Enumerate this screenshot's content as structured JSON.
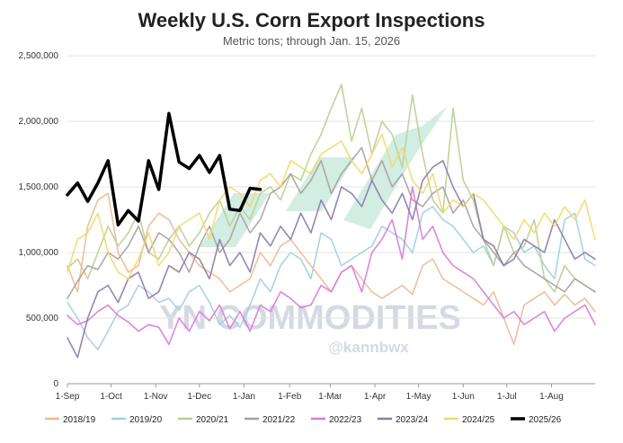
{
  "chart_data": {
    "type": "line",
    "title": "Weekly U.S. Corn Export Inspections",
    "subtitle": "Metric tons; through Jan. 15, 2026",
    "ylim": [
      0,
      2500000
    ],
    "yticks": [
      0,
      500000,
      1000000,
      1500000,
      2000000,
      2500000
    ],
    "ytick_labels": [
      "0",
      "500,000",
      "1,000,000",
      "1,500,000",
      "2,000,000",
      "2,500,000"
    ],
    "xtick_labels": [
      "1-Sep",
      "1-Oct",
      "1-Nov",
      "1-Dec",
      "1-Jan",
      "1-Feb",
      "1-Mar",
      "1-Apr",
      "1-May",
      "1-Jun",
      "1-Jul",
      "1-Aug"
    ],
    "xtick_weeks": [
      0,
      4.3,
      8.7,
      13,
      17.4,
      21.9,
      25.9,
      30.3,
      34.6,
      39,
      43.3,
      47.7
    ],
    "watermark": "YN COMMODITIES",
    "watermark_handle": "@kannbwx",
    "series": [
      {
        "name": "2018/19",
        "color": "#f0b890",
        "values": [
          900000,
          700000,
          1200000,
          1400000,
          1450000,
          1000000,
          850000,
          900000,
          1200000,
          1300000,
          1250000,
          1100000,
          1000000,
          900000,
          850000,
          800000,
          700000,
          750000,
          800000,
          1000000,
          900000,
          1050000,
          1100000,
          1000000,
          900000,
          800000,
          700000,
          850000,
          900000,
          800000,
          700000,
          650000,
          700000,
          750000,
          680000,
          900000,
          950000,
          800000,
          750000,
          700000,
          650000,
          600000,
          700000,
          500000,
          300000,
          600000,
          650000,
          700000,
          600000,
          680000,
          600000,
          650000,
          550000
        ]
      },
      {
        "name": "2019/20",
        "color": "#9ecfe0",
        "values": [
          620000,
          500000,
          350000,
          260000,
          400000,
          550000,
          600000,
          750000,
          700000,
          620000,
          650000,
          560000,
          700000,
          750000,
          620000,
          450000,
          520000,
          430000,
          600000,
          800000,
          700000,
          900000,
          1000000,
          950000,
          800000,
          1150000,
          1100000,
          900000,
          950000,
          1000000,
          1050000,
          1200000,
          1150000,
          1100000,
          1000000,
          1300000,
          1350000,
          1250000,
          1200000,
          1100000,
          1000000,
          1050000,
          900000,
          1200000,
          1150000,
          1000000,
          1050000,
          900000,
          800000,
          1250000,
          1300000,
          950000,
          900000
        ]
      },
      {
        "name": "2020/21",
        "color": "#b8cf92",
        "values": [
          880000,
          950000,
          800000,
          1000000,
          1200000,
          1050000,
          1150000,
          1300000,
          1000000,
          950000,
          1100000,
          1200000,
          1050000,
          1150000,
          1300000,
          1400000,
          1200000,
          1350000,
          1250000,
          1450000,
          1500000,
          1400000,
          1600000,
          1550000,
          1750000,
          1900000,
          2100000,
          2280000,
          1850000,
          2100000,
          1750000,
          2000000,
          1900000,
          1650000,
          2200000,
          1750000,
          1400000,
          1300000,
          2100000,
          1550000,
          1400000,
          1100000,
          900000,
          1200000,
          1000000,
          1050000,
          1250000,
          800000,
          700000,
          900000,
          800000,
          750000,
          700000
        ]
      },
      {
        "name": "2021/22",
        "color": "#a89f9f",
        "values": [
          650000,
          780000,
          900000,
          870000,
          1000000,
          950000,
          1050000,
          1200000,
          1000000,
          1150000,
          1100000,
          1000000,
          850000,
          1050000,
          1200000,
          1000000,
          1100000,
          1300000,
          1150000,
          1250000,
          1450000,
          1500000,
          1600000,
          1450000,
          1550000,
          1700000,
          1450000,
          1600000,
          1700000,
          1800000,
          1550000,
          1700000,
          1500000,
          1600000,
          1400000,
          1350000,
          1450000,
          1500000,
          1300000,
          1400000,
          1200000,
          1100000,
          1000000,
          900000,
          1000000,
          900000,
          850000,
          800000,
          750000,
          700000,
          800000,
          750000,
          700000
        ]
      },
      {
        "name": "2022/23",
        "color": "#d87ad8",
        "values": [
          520000,
          450000,
          480000,
          550000,
          600000,
          520000,
          470000,
          400000,
          450000,
          430000,
          300000,
          500000,
          400000,
          550000,
          480000,
          600000,
          420000,
          550000,
          400000,
          600000,
          550000,
          700000,
          650000,
          580000,
          600000,
          750000,
          700000,
          850000,
          900000,
          700000,
          1000000,
          1100000,
          1250000,
          950000,
          1500000,
          1100000,
          1200000,
          1000000,
          900000,
          850000,
          800000,
          700000,
          600000,
          500000,
          550000,
          450000,
          500000,
          550000,
          400000,
          500000,
          550000,
          600000,
          450000
        ]
      },
      {
        "name": "2023/24",
        "color": "#8a7aaa",
        "values": [
          350000,
          200000,
          500000,
          700000,
          750000,
          620000,
          800000,
          850000,
          650000,
          700000,
          900000,
          850000,
          1000000,
          950000,
          800000,
          1100000,
          900000,
          1000000,
          850000,
          1150000,
          1050000,
          1200000,
          1100000,
          1300000,
          1150000,
          1400000,
          1250000,
          1500000,
          1450000,
          1350000,
          1550000,
          1400000,
          1300000,
          1450000,
          1250000,
          1550000,
          1650000,
          1700000,
          1500000,
          1350000,
          1450000,
          1100000,
          1050000,
          900000,
          950000,
          1100000,
          1050000,
          1000000,
          1250000,
          1100000,
          950000,
          1000000,
          950000
        ]
      },
      {
        "name": "2024/25",
        "color": "#f2d86a",
        "values": [
          850000,
          1100000,
          1150000,
          1300000,
          1000000,
          850000,
          800000,
          950000,
          1150000,
          900000,
          1000000,
          1200000,
          1250000,
          1300000,
          1100000,
          1400000,
          1500000,
          1450000,
          1350000,
          1550000,
          1600000,
          1500000,
          1700000,
          1650000,
          1600000,
          1750000,
          1800000,
          1850000,
          1700000,
          1600000,
          1750000,
          1900000,
          1650000,
          1800000,
          1550000,
          1450000,
          1600000,
          1300000,
          1400000,
          1350000,
          1450000,
          1400000,
          1300000,
          1200000,
          1100000,
          1250000,
          1150000,
          1300000,
          1200000,
          1350000,
          1250000,
          1400000,
          1100000
        ]
      },
      {
        "name": "2025/26",
        "color": "#000000",
        "values": [
          1440000,
          1530000,
          1390000,
          1530000,
          1700000,
          1210000,
          1320000,
          1240000,
          1700000,
          1480000,
          2060000,
          1690000,
          1640000,
          1740000,
          1610000,
          1740000,
          1330000,
          1320000,
          1490000,
          1480000
        ]
      }
    ]
  }
}
